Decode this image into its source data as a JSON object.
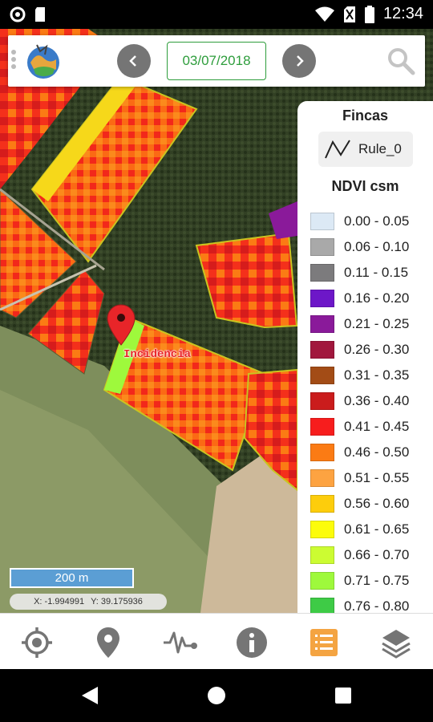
{
  "status_bar": {
    "time": "12:34",
    "icons": [
      "notification-circle-icon",
      "sd-card-icon",
      "wifi-icon",
      "no-sim-icon",
      "battery-icon"
    ]
  },
  "toolbar": {
    "date": "03/07/2018",
    "icons": [
      "drag-handle-icon",
      "app-logo",
      "chevron-left-icon",
      "chevron-right-icon",
      "search-icon"
    ]
  },
  "map": {
    "marker_label": "Incidencia",
    "scale_label": "200 m",
    "coords": {
      "x": "X: -1.994991",
      "y": "Y: 39.175936"
    }
  },
  "legend": {
    "fincas_title": "Fincas",
    "rule_label": "Rule_0",
    "ndvi_title": "NDVI csm",
    "items": [
      {
        "range": "0.00 - 0.05",
        "color": "#dce9f5"
      },
      {
        "range": "0.06 - 0.10",
        "color": "#a9a9a9"
      },
      {
        "range": "0.11 - 0.15",
        "color": "#7c7b7d"
      },
      {
        "range": "0.16 - 0.20",
        "color": "#6d17c8"
      },
      {
        "range": "0.21 - 0.25",
        "color": "#8a1a9a"
      },
      {
        "range": "0.26 - 0.30",
        "color": "#a1173d"
      },
      {
        "range": "0.31 - 0.35",
        "color": "#a34c16"
      },
      {
        "range": "0.36 - 0.40",
        "color": "#ca1c1c"
      },
      {
        "range": "0.41 - 0.45",
        "color": "#f71d1d"
      },
      {
        "range": "0.46 - 0.50",
        "color": "#fb7b14"
      },
      {
        "range": "0.51 - 0.55",
        "color": "#fda341"
      },
      {
        "range": "0.56 - 0.60",
        "color": "#fdcd0c"
      },
      {
        "range": "0.61 - 0.65",
        "color": "#fcfc0b"
      },
      {
        "range": "0.66 - 0.70",
        "color": "#ccfc32"
      },
      {
        "range": "0.71 - 0.75",
        "color": "#9ef93c"
      },
      {
        "range": "0.76 - 0.80",
        "color": "#3ecb46"
      }
    ]
  },
  "bottom_nav": {
    "items": [
      {
        "icon": "gps-target-icon",
        "active": false
      },
      {
        "icon": "location-pin-icon",
        "active": false
      },
      {
        "icon": "pulse-chart-icon",
        "active": false
      },
      {
        "icon": "info-icon",
        "active": false
      },
      {
        "icon": "list-icon",
        "active": true
      },
      {
        "icon": "layers-icon",
        "active": false
      }
    ],
    "active_color": "#f4a442",
    "inactive_color": "#757575"
  },
  "android_nav": {
    "icons": [
      "back-icon",
      "home-icon",
      "recents-icon"
    ]
  }
}
